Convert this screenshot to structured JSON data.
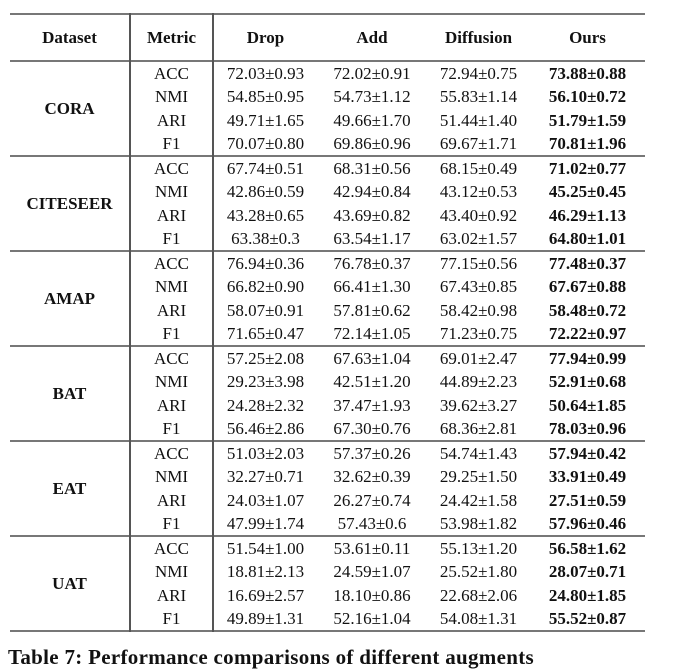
{
  "table": {
    "headers": [
      "Dataset",
      "Metric",
      "Drop",
      "Add",
      "Diffusion",
      "Ours"
    ],
    "bold_column": "Ours",
    "groups": [
      {
        "dataset": "CORA",
        "rows": [
          {
            "metric": "ACC",
            "values": [
              "72.03±0.93",
              "72.02±0.91",
              "72.94±0.75",
              "73.88±0.88"
            ]
          },
          {
            "metric": "NMI",
            "values": [
              "54.85±0.95",
              "54.73±1.12",
              "55.83±1.14",
              "56.10±0.72"
            ]
          },
          {
            "metric": "ARI",
            "values": [
              "49.71±1.65",
              "49.66±1.70",
              "51.44±1.40",
              "51.79±1.59"
            ]
          },
          {
            "metric": "F1",
            "values": [
              "70.07±0.80",
              "69.86±0.96",
              "69.67±1.71",
              "70.81±1.96"
            ]
          }
        ]
      },
      {
        "dataset": "CITESEER",
        "rows": [
          {
            "metric": "ACC",
            "values": [
              "67.74±0.51",
              "68.31±0.56",
              "68.15±0.49",
              "71.02±0.77"
            ]
          },
          {
            "metric": "NMI",
            "values": [
              "42.86±0.59",
              "42.94±0.84",
              "43.12±0.53",
              "45.25±0.45"
            ]
          },
          {
            "metric": "ARI",
            "values": [
              "43.28±0.65",
              "43.69±0.82",
              "43.40±0.92",
              "46.29±1.13"
            ]
          },
          {
            "metric": "F1",
            "values": [
              "63.38±0.3",
              "63.54±1.17",
              "63.02±1.57",
              "64.80±1.01"
            ]
          }
        ]
      },
      {
        "dataset": "AMAP",
        "rows": [
          {
            "metric": "ACC",
            "values": [
              "76.94±0.36",
              "76.78±0.37",
              "77.15±0.56",
              "77.48±0.37"
            ]
          },
          {
            "metric": "NMI",
            "values": [
              "66.82±0.90",
              "66.41±1.30",
              "67.43±0.85",
              "67.67±0.88"
            ]
          },
          {
            "metric": "ARI",
            "values": [
              "58.07±0.91",
              "57.81±0.62",
              "58.42±0.98",
              "58.48±0.72"
            ]
          },
          {
            "metric": "F1",
            "values": [
              "71.65±0.47",
              "72.14±1.05",
              "71.23±0.75",
              "72.22±0.97"
            ]
          }
        ]
      },
      {
        "dataset": "BAT",
        "rows": [
          {
            "metric": "ACC",
            "values": [
              "57.25±2.08",
              "67.63±1.04",
              "69.01±2.47",
              "77.94±0.99"
            ]
          },
          {
            "metric": "NMI",
            "values": [
              "29.23±3.98",
              "42.51±1.20",
              "44.89±2.23",
              "52.91±0.68"
            ]
          },
          {
            "metric": "ARI",
            "values": [
              "24.28±2.32",
              "37.47±1.93",
              "39.62±3.27",
              "50.64±1.85"
            ]
          },
          {
            "metric": "F1",
            "values": [
              "56.46±2.86",
              "67.30±0.76",
              "68.36±2.81",
              "78.03±0.96"
            ]
          }
        ]
      },
      {
        "dataset": "EAT",
        "rows": [
          {
            "metric": "ACC",
            "values": [
              "51.03±2.03",
              "57.37±0.26",
              "54.74±1.43",
              "57.94±0.42"
            ]
          },
          {
            "metric": "NMI",
            "values": [
              "32.27±0.71",
              "32.62±0.39",
              "29.25±1.50",
              "33.91±0.49"
            ]
          },
          {
            "metric": "ARI",
            "values": [
              "24.03±1.07",
              "26.27±0.74",
              "24.42±1.58",
              "27.51±0.59"
            ]
          },
          {
            "metric": "F1",
            "values": [
              "47.99±1.74",
              "57.43±0.6",
              "53.98±1.82",
              "57.96±0.46"
            ]
          }
        ]
      },
      {
        "dataset": "UAT",
        "rows": [
          {
            "metric": "ACC",
            "values": [
              "51.54±1.00",
              "53.61±0.11",
              "55.13±1.20",
              "56.58±1.62"
            ]
          },
          {
            "metric": "NMI",
            "values": [
              "18.81±2.13",
              "24.59±1.07",
              "25.52±1.80",
              "28.07±0.71"
            ]
          },
          {
            "metric": "ARI",
            "values": [
              "16.69±2.57",
              "18.10±0.86",
              "22.68±2.06",
              "24.80±1.85"
            ]
          },
          {
            "metric": "F1",
            "values": [
              "49.89±1.31",
              "52.16±1.04",
              "54.08±1.31",
              "55.52±0.87"
            ]
          }
        ]
      }
    ]
  },
  "caption": "Table 7: Performance comparisons of different augments"
}
